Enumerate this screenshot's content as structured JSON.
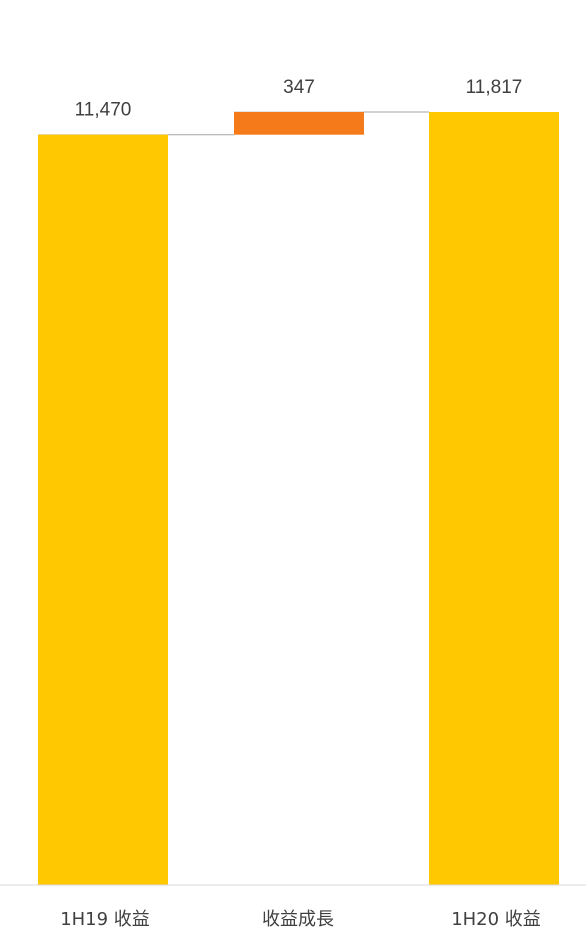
{
  "chart_data": {
    "type": "bar",
    "subtype": "waterfall",
    "title": "",
    "xlabel": "",
    "ylabel": "",
    "categories": [
      "1H19 收益",
      "收益成長",
      "1H20 收益"
    ],
    "values": [
      11470,
      347,
      11817
    ],
    "value_labels": [
      "11,470",
      "347",
      "11,817"
    ],
    "bases": [
      0,
      11470,
      0
    ],
    "ylim": [
      0,
      11817
    ],
    "grid": false,
    "legend": "none",
    "colors": [
      "#FFC800",
      "#F47A1A",
      "#FFC800"
    ],
    "connector_color": "#A6A6A6",
    "axis_color": "#D9D9D9"
  }
}
